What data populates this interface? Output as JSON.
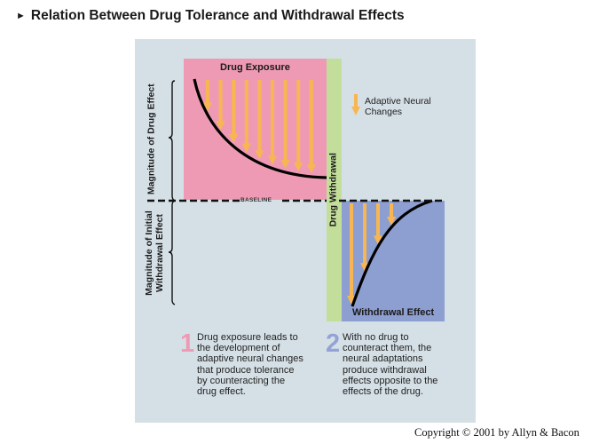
{
  "title": {
    "marker": "►",
    "text": "Relation Between Drug Tolerance and Withdrawal Effects"
  },
  "colors": {
    "panel_bg": "#d5e0e6",
    "drug_exposure": "#ee9ab4",
    "withdrawal_strip": "#c3de9a",
    "withdrawal_effect": "#8d9ed0",
    "arrow": "#f8b653",
    "curve": "#000000",
    "step1_number": "#ef9ab5",
    "step2_number": "#94a3d6"
  },
  "diagram": {
    "drug_exposure_label": "Drug Exposure",
    "withdrawal_effect_label": "Withdrawal Effect",
    "drug_withdrawal_label": "Drug Withdrawal",
    "baseline_label": "BASELINE",
    "left_axis": {
      "upper_label": "Magnitude of Drug Effect",
      "lower_label_line1": "Magnitude of Initial",
      "lower_label_line2": "Withdrawal Effect"
    },
    "legend": {
      "icon": "down-arrow-icon",
      "line1": "Adaptive Neural",
      "line2": "Changes"
    },
    "drug_exposure_arrow_count": 9,
    "withdrawal_arrow_count": 4
  },
  "steps": [
    {
      "number": "1",
      "lines": [
        "Drug exposure leads to",
        "the development of",
        "adaptive neural changes",
        "that produce tolerance",
        "by counteracting the",
        "drug effect."
      ]
    },
    {
      "number": "2",
      "lines": [
        "With no drug to",
        "counteract them, the",
        "neural adaptations",
        "produce withdrawal",
        "effects opposite to the",
        "effects of the drug."
      ]
    }
  ],
  "copyright": "Copyright © 2001 by Allyn & Bacon"
}
